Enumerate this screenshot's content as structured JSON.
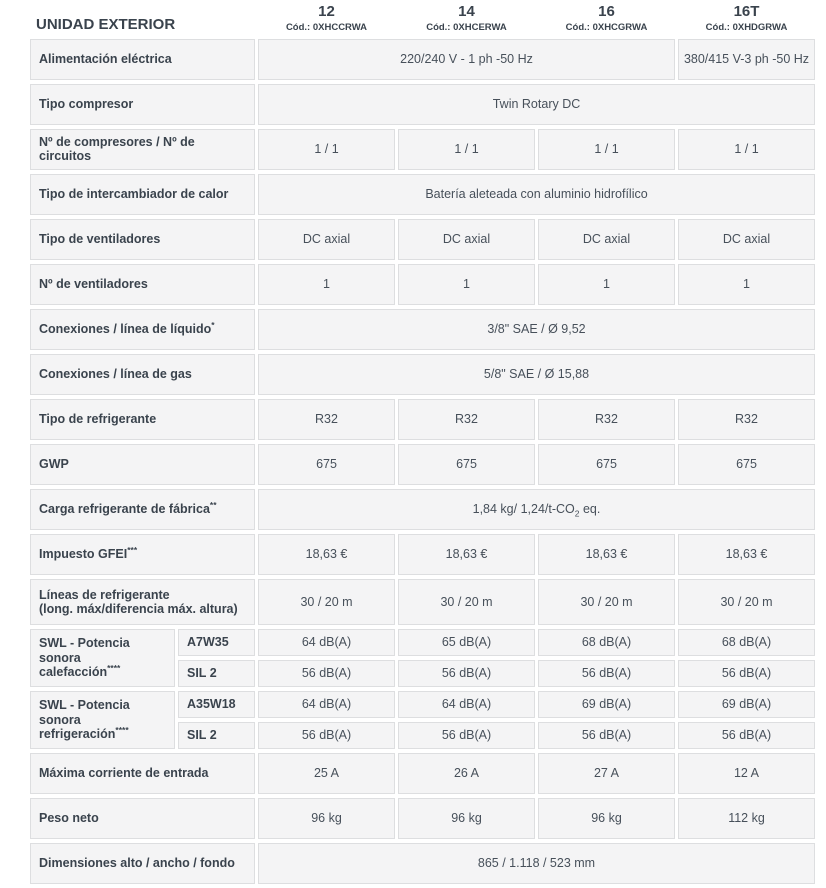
{
  "colors": {
    "cell_background": "#f4f4f5",
    "cell_border": "#dddee0",
    "label_text": "#3a434d",
    "value_text": "#47505a",
    "page_background": "#ffffff"
  },
  "header": {
    "title": "UNIDAD EXTERIOR",
    "models": [
      {
        "num": "12",
        "code": "Cód.: 0XHCCRWA"
      },
      {
        "num": "14",
        "code": "Cód.: 0XHCERWA"
      },
      {
        "num": "16",
        "code": "Cód.: 0XHCGRWA"
      },
      {
        "num": "16T",
        "code": "Cód.: 0XHDGRWA"
      }
    ]
  },
  "rows": [
    {
      "label": "Alimentación eléctrica",
      "cells": [
        "220/240 V - 1 ph -50 Hz",
        "380/415 V-3 ph -50 Hz"
      ]
    },
    {
      "label": "Tipo compresor",
      "cells": [
        "Twin Rotary DC"
      ]
    },
    {
      "label": "Nº de compresores / Nº de circuitos",
      "cells": [
        "1 / 1",
        "1 / 1",
        "1 / 1",
        "1 / 1"
      ]
    },
    {
      "label": "Tipo de intercambiador de calor",
      "cells": [
        "Batería aleteada con aluminio hidrofílico"
      ]
    },
    {
      "label": "Tipo de ventiladores",
      "cells": [
        "DC axial",
        "DC axial",
        "DC axial",
        "DC axial"
      ]
    },
    {
      "label": "Nº de ventiladores",
      "cells": [
        "1",
        "1",
        "1",
        "1"
      ]
    },
    {
      "label": "Conexiones / línea de líquido",
      "sup": "*",
      "cells": [
        "3/8\" SAE / Ø 9,52"
      ]
    },
    {
      "label": "Conexiones / línea de gas",
      "cells": [
        "5/8\" SAE / Ø 15,88"
      ]
    },
    {
      "label": "Tipo de refrigerante",
      "cells": [
        "R32",
        "R32",
        "R32",
        "R32"
      ]
    },
    {
      "label": "GWP",
      "cells": [
        "675",
        "675",
        "675",
        "675"
      ]
    },
    {
      "label": "Carga refrigerante de fábrica",
      "sup": "**",
      "value": {
        "pre": "1,84 kg/ 1,24/t-CO",
        "sub": "2",
        "post": " eq."
      }
    },
    {
      "label": "Impuesto GFEI",
      "sup": "***",
      "cells": [
        "18,63 €",
        "18,63 €",
        "18,63 €",
        "18,63 €"
      ]
    },
    {
      "label": "Líneas de refrigerante",
      "label2": "(long. máx/diferencia máx. altura)",
      "cells": [
        "30 / 20 m",
        "30 / 20 m",
        "30 / 20 m",
        "30 / 20 m"
      ]
    },
    {
      "label": "SWL - Potencia sonora",
      "label2": "calefacción",
      "sup": "****",
      "subrows": [
        {
          "name": "A7W35",
          "cells": [
            "64 dB(A)",
            "65 dB(A)",
            "68 dB(A)",
            "68 dB(A)"
          ]
        },
        {
          "name": "SIL 2",
          "cells": [
            "56 dB(A)",
            "56 dB(A)",
            "56 dB(A)",
            "56 dB(A)"
          ]
        }
      ]
    },
    {
      "label": "SWL - Potencia sonora",
      "label2": "refrigeración",
      "sup": "****",
      "subrows": [
        {
          "name": "A35W18",
          "cells": [
            "64 dB(A)",
            "64 dB(A)",
            "69 dB(A)",
            "69 dB(A)"
          ]
        },
        {
          "name": "SIL 2",
          "cells": [
            "56 dB(A)",
            "56 dB(A)",
            "56 dB(A)",
            "56 dB(A)"
          ]
        }
      ]
    },
    {
      "label": "Máxima corriente de entrada",
      "cells": [
        "25 A",
        "26 A",
        "27 A",
        "12 A"
      ]
    },
    {
      "label": "Peso neto",
      "cells": [
        "96 kg",
        "96 kg",
        "96 kg",
        "112 kg"
      ]
    },
    {
      "label": "Dimensiones alto / ancho / fondo",
      "cells": [
        "865 / 1.118 / 523 mm"
      ]
    }
  ]
}
